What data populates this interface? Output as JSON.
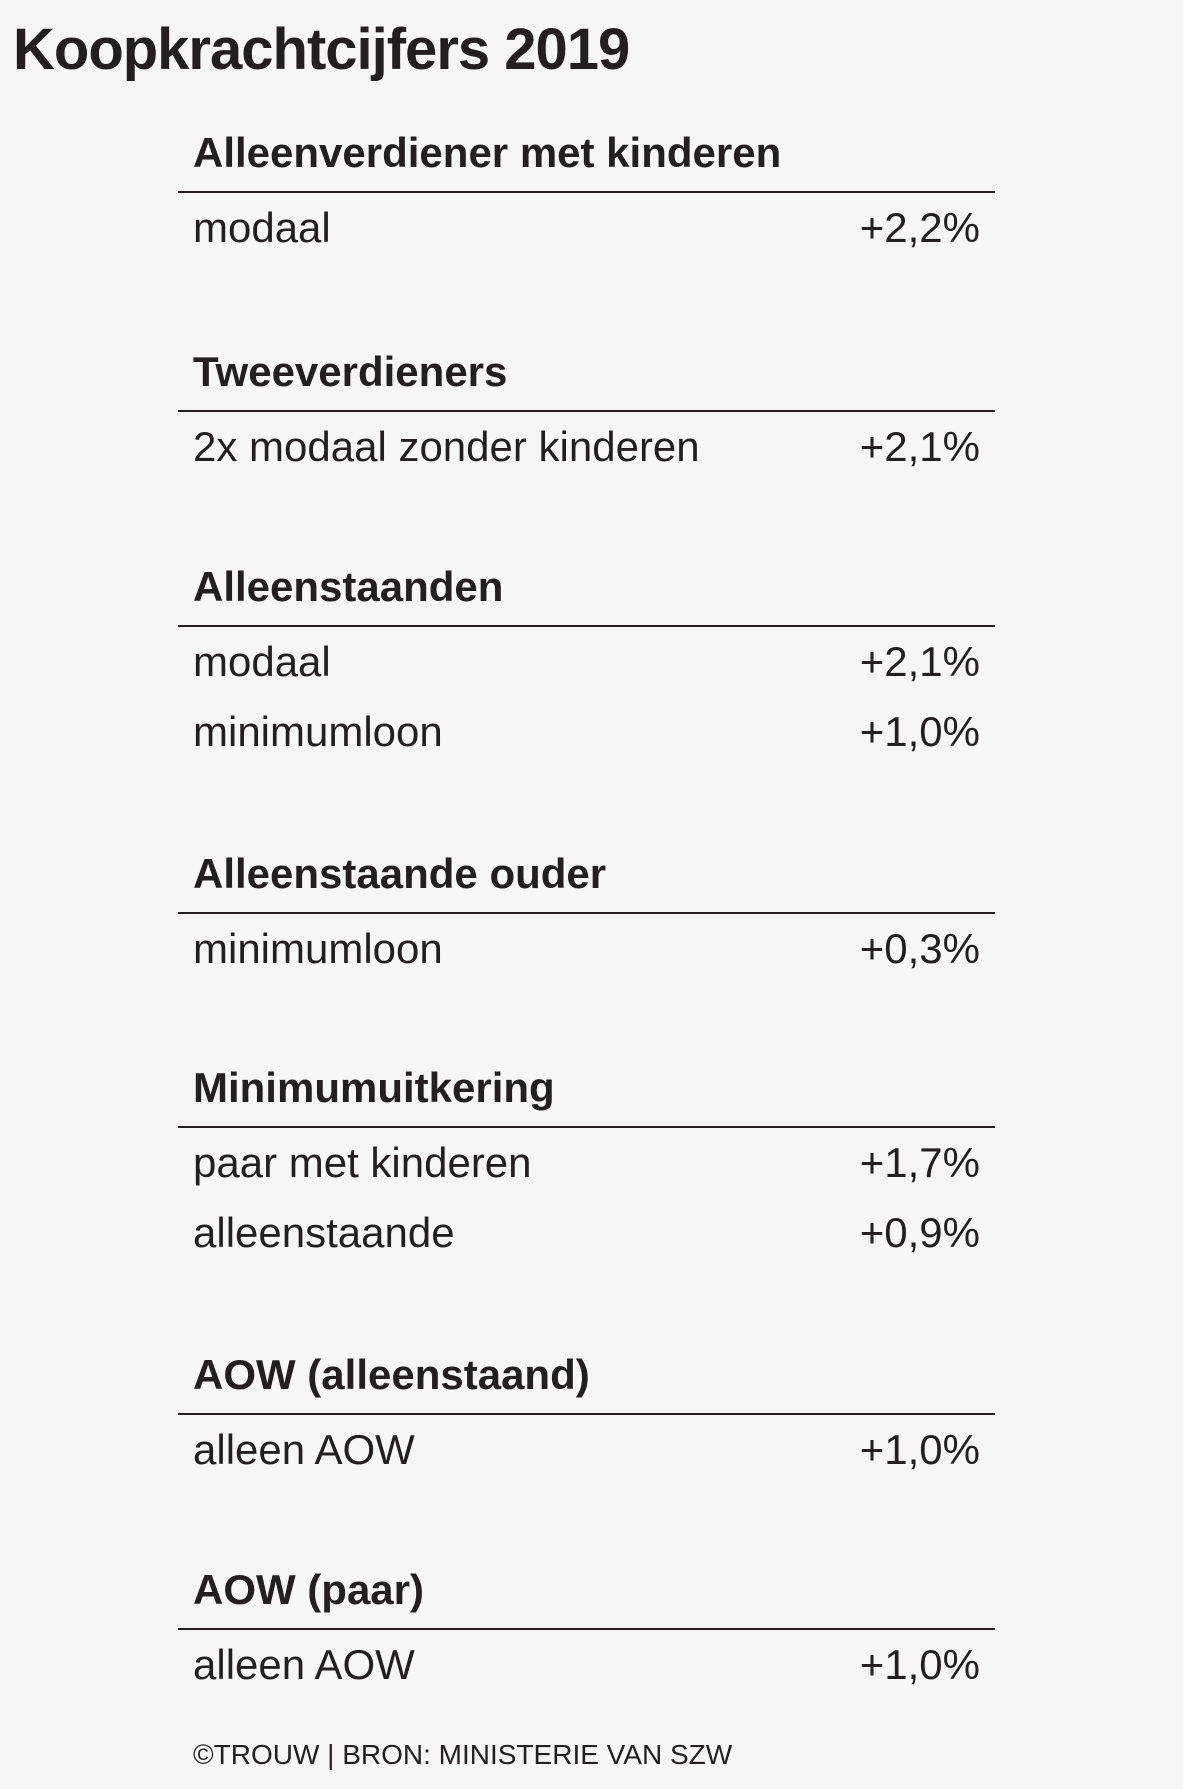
{
  "title": "Koopkrachtcijfers 2019",
  "sections": [
    {
      "heading": "Alleenverdiener met kinderen",
      "rows": [
        {
          "label": "modaal",
          "value": "+2,2%"
        }
      ]
    },
    {
      "heading": "Tweeverdieners",
      "rows": [
        {
          "label": "2x modaal zonder kinderen",
          "value": "+2,1%"
        }
      ]
    },
    {
      "heading": "Alleenstaanden",
      "rows": [
        {
          "label": "modaal",
          "value": "+2,1%"
        },
        {
          "label": "minimumloon",
          "value": "+1,0%"
        }
      ]
    },
    {
      "heading": "Alleenstaande ouder",
      "rows": [
        {
          "label": "minimumloon",
          "value": "+0,3%"
        }
      ]
    },
    {
      "heading": "Minimumuitkering",
      "rows": [
        {
          "label": "paar met kinderen",
          "value": "+1,7%"
        },
        {
          "label": "alleenstaande",
          "value": "+0,9%"
        }
      ]
    },
    {
      "heading": "AOW (alleenstaand)",
      "rows": [
        {
          "label": "alleen AOW",
          "value": "+1,0%"
        }
      ]
    },
    {
      "heading": "AOW (paar)",
      "rows": [
        {
          "label": "alleen AOW",
          "value": "+1,0%"
        }
      ]
    }
  ],
  "credit": "©TROUW | BRON: MINISTERIE VAN SZW"
}
